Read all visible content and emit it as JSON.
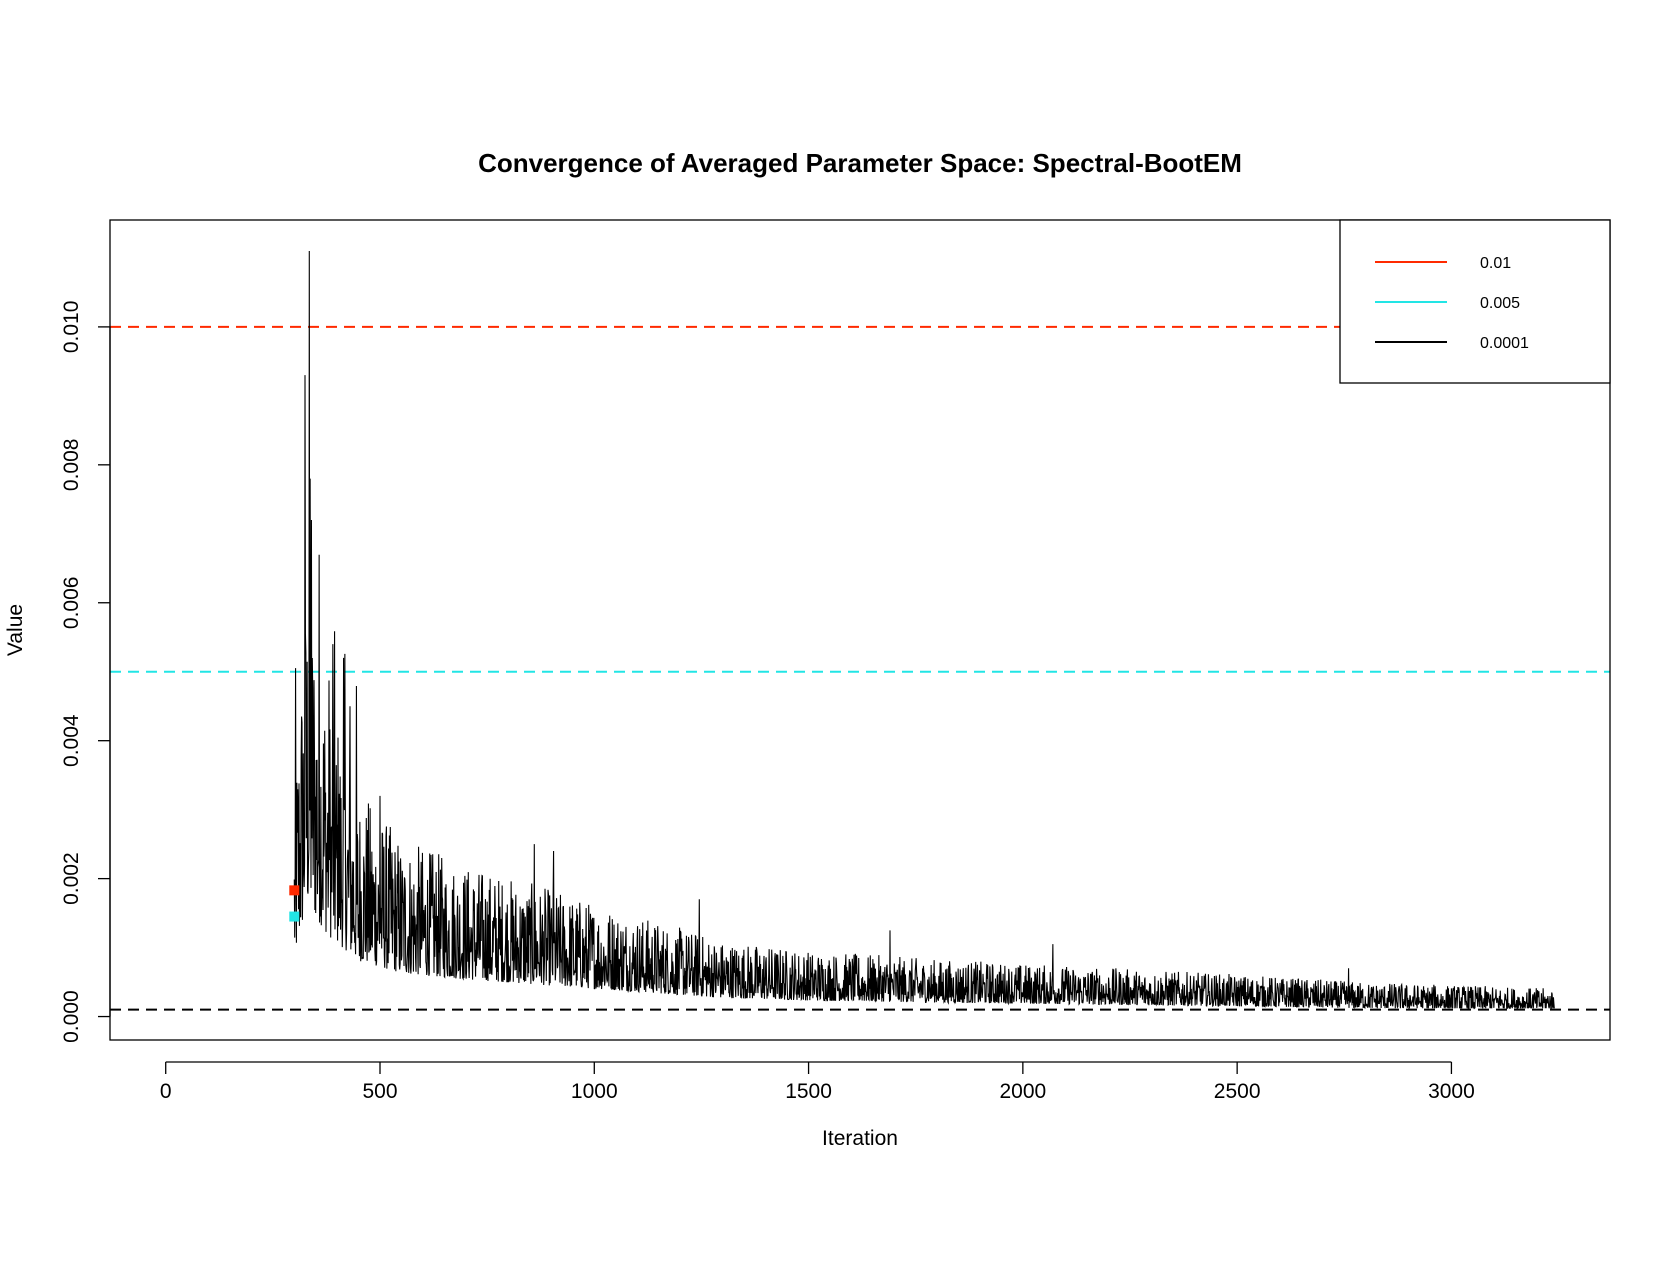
{
  "chart_data": {
    "type": "line",
    "title": "Convergence of Averaged Parameter Space: Spectral-BootEM",
    "xlabel": "Iteration",
    "ylabel": "Value",
    "xlim": [
      -130,
      3370
    ],
    "ylim": [
      -0.00034,
      0.01155
    ],
    "x_ticks": [
      0,
      500,
      1000,
      1500,
      2000,
      2500,
      3000
    ],
    "x_tick_labels": [
      "0",
      "500",
      "1000",
      "1500",
      "2000",
      "2500",
      "3000"
    ],
    "y_ticks": [
      0.0,
      0.002,
      0.004,
      0.006,
      0.008,
      0.01
    ],
    "y_tick_labels": [
      "0.000",
      "0.002",
      "0.004",
      "0.006",
      "0.008",
      "0.010"
    ],
    "grid": false,
    "legend": {
      "position": "top-right",
      "entries": [
        {
          "label": "0.01",
          "color": "#FF2A00"
        },
        {
          "label": "0.005",
          "color": "#22E5E5"
        },
        {
          "label": "0.0001",
          "color": "#000000"
        }
      ]
    },
    "reference_lines": [
      {
        "y": 0.01,
        "color": "#FF2A00",
        "style": "dashed"
      },
      {
        "y": 0.005,
        "color": "#22E5E5",
        "style": "dashed"
      },
      {
        "y": 0.0001,
        "color": "#000000",
        "style": "dashed"
      }
    ],
    "markers": [
      {
        "x": 300,
        "y": 0.00183,
        "color": "#FF2A00",
        "shape": "square"
      },
      {
        "x": 300,
        "y": 0.00145,
        "color": "#22E5E5",
        "shape": "square"
      }
    ],
    "series": [
      {
        "color": "#000000",
        "x_start": 300,
        "x_end": 3240,
        "trend": [
          [
            300,
            0.0018
          ],
          [
            330,
            0.0036
          ],
          [
            380,
            0.0026
          ],
          [
            450,
            0.0018
          ],
          [
            550,
            0.0014
          ],
          [
            700,
            0.0012
          ],
          [
            900,
            0.001
          ],
          [
            1100,
            0.0008
          ],
          [
            1300,
            0.0006
          ],
          [
            1500,
            0.00052
          ],
          [
            1800,
            0.00045
          ],
          [
            2100,
            0.0004
          ],
          [
            2500,
            0.00033
          ],
          [
            2800,
            0.00027
          ],
          [
            3240,
            0.00022
          ]
        ],
        "peaks": [
          [
            325,
            0.0093
          ],
          [
            335,
            0.0111
          ],
          [
            340,
            0.0072
          ],
          [
            390,
            0.0054
          ],
          [
            415,
            0.0052
          ],
          [
            430,
            0.0045
          ],
          [
            500,
            0.0032
          ],
          [
            860,
            0.0025
          ],
          [
            905,
            0.0024
          ],
          [
            1245,
            0.0017
          ],
          [
            1690,
            0.00125
          ],
          [
            2070,
            0.00105
          ],
          [
            2760,
            0.0007
          ]
        ]
      }
    ]
  }
}
